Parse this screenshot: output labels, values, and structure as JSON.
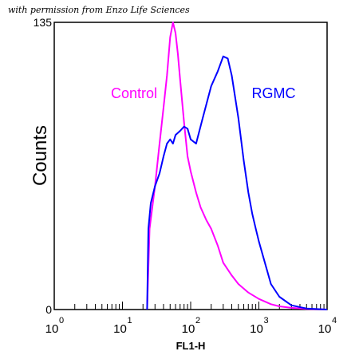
{
  "credit": "with permission from Enzo Life Sciences",
  "chart_data": {
    "type": "line",
    "title": "",
    "xlabel": "FL1-H",
    "ylabel": "Counts",
    "xscale": "log",
    "xlim": [
      1,
      10000
    ],
    "ylim": [
      0,
      135
    ],
    "x_ticks": [
      {
        "base": "10",
        "exp": "0",
        "value": 1
      },
      {
        "base": "10",
        "exp": "1",
        "value": 10
      },
      {
        "base": "10",
        "exp": "2",
        "value": 100
      },
      {
        "base": "10",
        "exp": "3",
        "value": 1000
      },
      {
        "base": "10",
        "exp": "4",
        "value": 10000
      }
    ],
    "y_ticks": [
      {
        "label": "0",
        "value": 0
      },
      {
        "label": "135",
        "value": 135
      }
    ],
    "grid": false,
    "legend": "inline labels near curves",
    "series": [
      {
        "name": "Control",
        "color": "#ff00ff",
        "x": [
          23,
          25,
          30,
          35,
          40,
          45,
          50,
          55,
          60,
          65,
          70,
          80,
          90,
          100,
          120,
          140,
          170,
          200,
          250,
          300,
          400,
          500,
          700,
          1000,
          1500,
          2000,
          3000,
          5000,
          10000
        ],
        "y": [
          0,
          38,
          58,
          78,
          95,
          110,
          128,
          135,
          130,
          120,
          108,
          88,
          72,
          65,
          55,
          48,
          42,
          38,
          30,
          22,
          16,
          12,
          8,
          5,
          2.5,
          1.5,
          0.8,
          0.3,
          0
        ]
      },
      {
        "name": "RGMC",
        "color": "#0000ff",
        "x": [
          23,
          24,
          26,
          30,
          35,
          40,
          45,
          50,
          55,
          60,
          70,
          80,
          90,
          100,
          120,
          150,
          200,
          250,
          300,
          350,
          400,
          500,
          600,
          700,
          800,
          900,
          1000,
          1200,
          1500,
          2000,
          3000,
          5000,
          10000
        ],
        "y": [
          0,
          38,
          50,
          58,
          64,
          72,
          78,
          80,
          78,
          82,
          84,
          86,
          85,
          80,
          78,
          90,
          105,
          112,
          119,
          118,
          110,
          90,
          70,
          55,
          45,
          38,
          32,
          23,
          12,
          6,
          2,
          0.5,
          0
        ]
      }
    ]
  }
}
